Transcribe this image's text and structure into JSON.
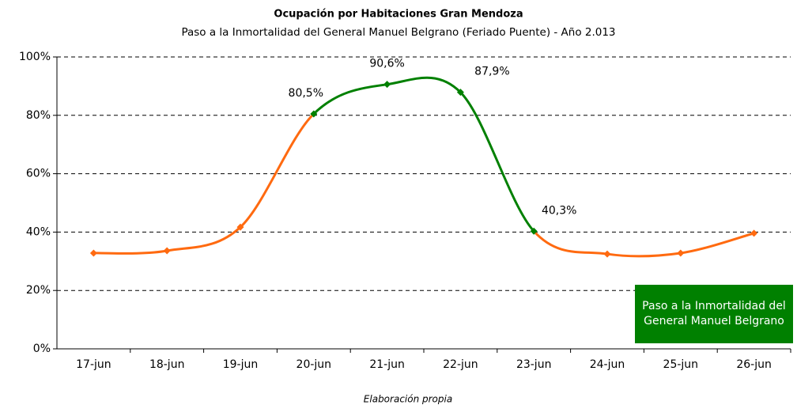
{
  "chart_data": {
    "type": "line",
    "title": "Ocupación por Habitaciones Gran Mendoza",
    "subtitle": "Paso a la Inmortalidad del General Manuel Belgrano (Feriado Puente) - Año 2.013",
    "footer": "Elaboración propia",
    "categories": [
      "17-jun",
      "18-jun",
      "19-jun",
      "20-jun",
      "21-jun",
      "22-jun",
      "23-jun",
      "24-jun",
      "25-jun",
      "26-jun"
    ],
    "series": [
      {
        "color": "#ff6a10",
        "values": [
          32.8,
          33.6,
          41.7,
          80.5,
          90.6,
          87.9,
          40.3,
          32.5,
          32.8,
          39.6
        ],
        "value_labels": [
          null,
          null,
          null,
          "80,5%",
          "90,6%",
          "87,9%",
          "40,3%",
          null,
          null,
          null
        ]
      }
    ],
    "highlight": {
      "from": 3,
      "to": 6,
      "color": "#008000",
      "label": "Paso a la Inmortalidad del General Manuel Belgrano"
    },
    "ylim": [
      0,
      100
    ],
    "yticks": [
      {
        "value": 0,
        "label": "0%"
      },
      {
        "value": 20,
        "label": "20%"
      },
      {
        "value": 40,
        "label": "40%"
      },
      {
        "value": 60,
        "label": "60%"
      },
      {
        "value": 80,
        "label": "80%"
      },
      {
        "value": 100,
        "label": "100%"
      }
    ],
    "grid": true
  }
}
